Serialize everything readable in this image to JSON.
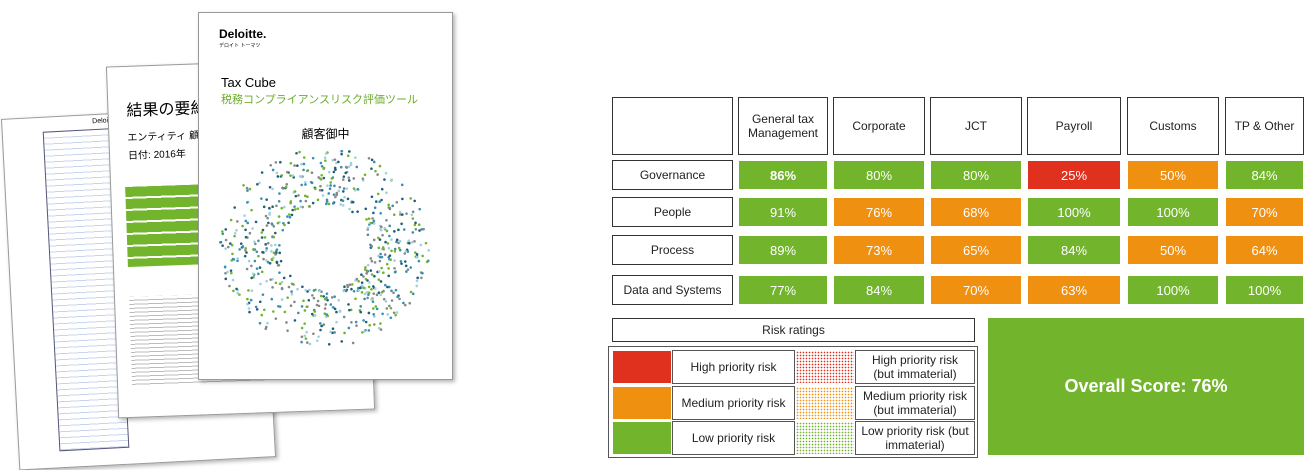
{
  "documents": {
    "back": {
      "header": "Deloitte."
    },
    "middle": {
      "title": "結果の要約",
      "entity": "エンティティ 顧客",
      "date": "日付:   2016年"
    },
    "front": {
      "logo": "Deloitte.",
      "logo_sub": "デロイト トーマツ",
      "title": "Tax Cube",
      "subtitle": "税務コンプライアンスリスク評価ツール",
      "addressee": "顧客御中"
    }
  },
  "table": {
    "columns": [
      "General tax Management",
      "Corporate",
      "JCT",
      "Payroll",
      "Customs",
      "TP & Other"
    ],
    "rows": [
      {
        "label": "Governance",
        "cells": [
          {
            "text": "86%",
            "color": "#72b52c",
            "bold": true
          },
          {
            "text": "80%",
            "color": "#72b52c"
          },
          {
            "text": "80%",
            "color": "#72b52c"
          },
          {
            "text": "25%",
            "color": "#e0301e"
          },
          {
            "text": "50%",
            "color": "#f09010"
          },
          {
            "text": "84%",
            "color": "#72b52c"
          }
        ]
      },
      {
        "label": "People",
        "cells": [
          {
            "text": "91%",
            "color": "#72b52c"
          },
          {
            "text": "76%",
            "color": "#f09010"
          },
          {
            "text": "68%",
            "color": "#f09010"
          },
          {
            "text": "100%",
            "color": "#72b52c"
          },
          {
            "text": "100%",
            "color": "#72b52c"
          },
          {
            "text": "70%",
            "color": "#f09010"
          }
        ]
      },
      {
        "label": "Process",
        "cells": [
          {
            "text": "89%",
            "color": "#72b52c"
          },
          {
            "text": "73%",
            "color": "#f09010"
          },
          {
            "text": "65%",
            "color": "#f09010"
          },
          {
            "text": "84%",
            "color": "#72b52c"
          },
          {
            "text": "50%",
            "color": "#f09010"
          },
          {
            "text": "64%",
            "color": "#f09010"
          }
        ]
      },
      {
        "label": "Data and Systems",
        "cells": [
          {
            "text": "77%",
            "color": "#72b52c"
          },
          {
            "text": "84%",
            "color": "#72b52c"
          },
          {
            "text": "70%",
            "color": "#f09010"
          },
          {
            "text": "63%",
            "color": "#f09010"
          },
          {
            "text": "100%",
            "color": "#72b52c"
          },
          {
            "text": "100%",
            "color": "#72b52c"
          }
        ]
      }
    ]
  },
  "legend": {
    "title": "Risk ratings",
    "items": [
      {
        "label": "High priority risk",
        "color": "#e0301e",
        "pattern": false
      },
      {
        "label": "High priority risk (but immaterial)",
        "color": "#e0301e",
        "pattern": true
      },
      {
        "label": "Medium priority risk",
        "color": "#f09010",
        "pattern": false
      },
      {
        "label": "Medium priority risk (but immaterial)",
        "color": "#f09010",
        "pattern": true
      },
      {
        "label": "Low priority risk",
        "color": "#72b52c",
        "pattern": false
      },
      {
        "label": "Low priority risk (but immaterial)",
        "color": "#72b52c",
        "pattern": true
      }
    ]
  },
  "overall": {
    "text": "Overall Score: 76%",
    "color": "#72b52c"
  }
}
